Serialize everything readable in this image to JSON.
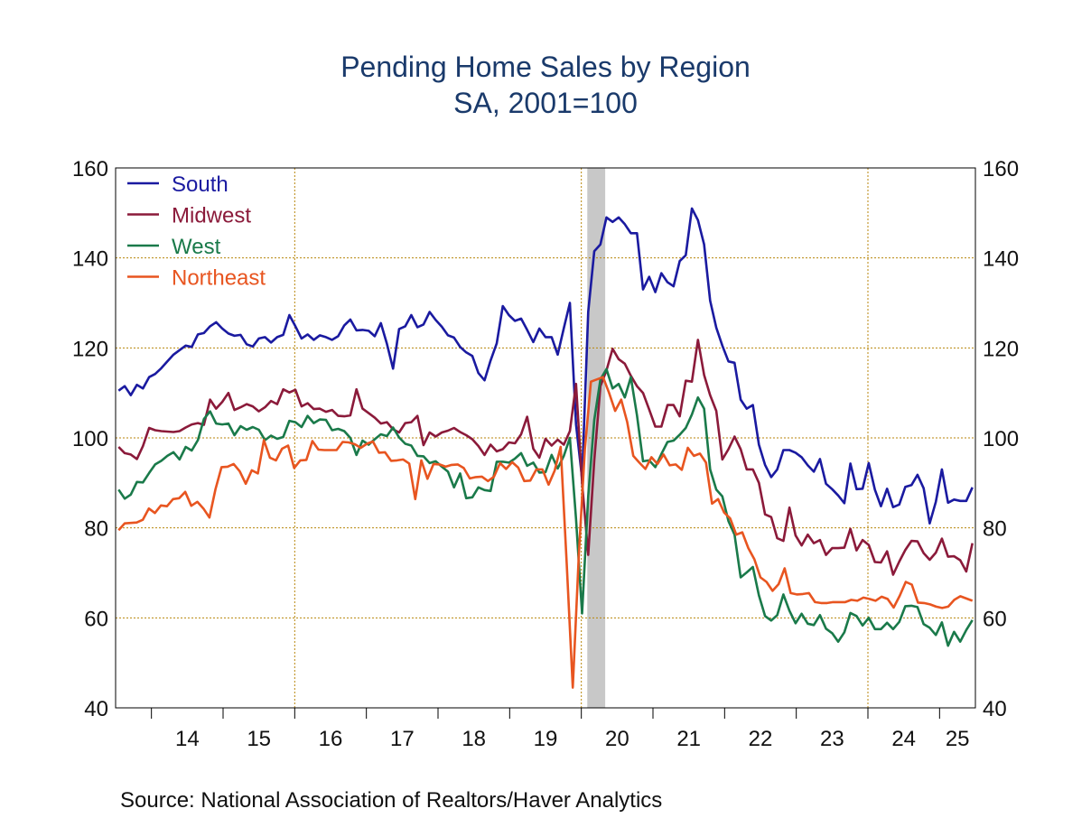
{
  "chart_data": {
    "type": "line",
    "title": "Pending Home Sales by Region",
    "subtitle": "SA, 2001=100",
    "source": "Source:  National Association of Realtors/Haver Analytics",
    "x_start": "2013-07",
    "x_end": "2025-06",
    "ylim": [
      40,
      160
    ],
    "y_ticks": [
      40,
      60,
      80,
      100,
      120,
      140,
      160
    ],
    "x_year_ticks": [
      "14",
      "15",
      "16",
      "17",
      "18",
      "19",
      "20",
      "21",
      "22",
      "23",
      "24",
      "25"
    ],
    "grid": true,
    "legend_position": "top-left",
    "recession_shading": [
      {
        "start": "2020-02",
        "end": "2020-04",
        "color": "#c8c8c8"
      }
    ],
    "series": [
      {
        "name": "South",
        "color": "#1a1aa0",
        "values": [
          110.5,
          111.5,
          109.5,
          111.8,
          111,
          113.5,
          114.2,
          115.5,
          117,
          118.5,
          119.5,
          120.5,
          120.2,
          123,
          123.3,
          124.8,
          125.7,
          124.3,
          123.2,
          122.7,
          122.9,
          120.8,
          120.3,
          122.1,
          122.4,
          121.2,
          122.4,
          122.9,
          127.3,
          124.8,
          122.1,
          123,
          121.8,
          122.8,
          122.4,
          121.8,
          122.6,
          125,
          126.3,
          123.9,
          124,
          123.8,
          122.6,
          125.5,
          120.9,
          115.4,
          124.2,
          124.8,
          127.3,
          124.6,
          125.2,
          128,
          126.2,
          124.7,
          122.8,
          122.3,
          120.2,
          119,
          118.2,
          114.4,
          112.8,
          117.2,
          121,
          129.3,
          127.3,
          126,
          126.5,
          124,
          121.3,
          124.3,
          122.4,
          122.4,
          118.5,
          124.4,
          130,
          103,
          91,
          128,
          141.5,
          143,
          149,
          148,
          149,
          147.5,
          145.5,
          145.5,
          133,
          135.8,
          132.4,
          136.6,
          134.6,
          133.7,
          139.3,
          140.6,
          151,
          148.4,
          143,
          130.5,
          124.5,
          120.5,
          117,
          116.7,
          108.5,
          106.5,
          107.3,
          98.5,
          94,
          91.3,
          93,
          97.3,
          97.3,
          96.7,
          95.7,
          93.9,
          92.5,
          95.3,
          89.8,
          88.6,
          87.2,
          85.5,
          94.3,
          88.6,
          88.7,
          94.4,
          88.5,
          84.8,
          88.7,
          84.6,
          85.2,
          89.1,
          89.5,
          91.8,
          88.8,
          81,
          85.8,
          93,
          85.6,
          86.3,
          86,
          86,
          89
        ]
      },
      {
        "name": "Midwest",
        "color": "#8b1a3a",
        "values": [
          98,
          96.6,
          96.3,
          95.3,
          98.2,
          102.2,
          101.7,
          101.5,
          101.4,
          101.3,
          101.5,
          102.3,
          103,
          103.3,
          102.9,
          108.5,
          106.5,
          108,
          110,
          106.2,
          106.8,
          107.5,
          107,
          105.9,
          106.8,
          108.2,
          107.5,
          110.8,
          110.1,
          110.7,
          107,
          107.7,
          106.4,
          106.5,
          105.8,
          106.2,
          104.9,
          104.8,
          105,
          110.8,
          106.5,
          105.5,
          104.5,
          103.2,
          103.5,
          101.9,
          101.2,
          103.3,
          103.5,
          104.9,
          98.4,
          101.2,
          100.3,
          101.2,
          101.6,
          102.2,
          101.3,
          100.6,
          99.7,
          98.2,
          96.2,
          98.5,
          97,
          97.5,
          99,
          98.8,
          100.8,
          104.7,
          97.6,
          95.6,
          99.8,
          98.3,
          99.6,
          98.5,
          101.5,
          112,
          90,
          74,
          95,
          111.5,
          115,
          119.8,
          117.5,
          116.5,
          113.8,
          111.5,
          110,
          106.3,
          102.5,
          102.5,
          107.3,
          107.3,
          104.8,
          112.7,
          112.5,
          121.8,
          114,
          109.5,
          106,
          95.2,
          97.5,
          100.3,
          97.5,
          93,
          93,
          90,
          83,
          82.4,
          77.7,
          77.1,
          84.5,
          78.3,
          76.1,
          78.5,
          76.6,
          77.3,
          74,
          75.5,
          75.5,
          75.6,
          79.8,
          75,
          77.3,
          76.2,
          72.4,
          72.3,
          74.8,
          69.6,
          72.5,
          75.1,
          77.1,
          77,
          74.4,
          72.9,
          74.5,
          77.6,
          73.6,
          73.7,
          72.8,
          70.3,
          76.6
        ]
      },
      {
        "name": "West",
        "color": "#1a7a4a",
        "values": [
          88.5,
          86.5,
          87.4,
          90.2,
          90.1,
          92.2,
          94.1,
          94.9,
          96,
          96.8,
          95.2,
          98,
          97.2,
          99.5,
          104.2,
          105.9,
          103.2,
          103,
          103.2,
          100.6,
          102.6,
          101.8,
          102.4,
          101.8,
          99.5,
          100.5,
          99.8,
          100.2,
          103.8,
          103.5,
          102.4,
          104.9,
          103.3,
          104.1,
          104,
          101.7,
          102,
          101.5,
          100,
          96.2,
          99.4,
          98.5,
          99.7,
          100.8,
          100.4,
          102.3,
          100.1,
          98.7,
          98.3,
          96,
          95.9,
          94.4,
          94.8,
          93.6,
          92.5,
          89,
          92.1,
          86.6,
          86.8,
          89,
          88.4,
          88.2,
          94.7,
          94.7,
          94.5,
          95.4,
          96.6,
          93.8,
          94.5,
          92.3,
          92.4,
          96.2,
          93.2,
          96,
          100,
          82,
          61,
          87,
          104,
          113,
          115.3,
          111,
          112,
          109,
          113.5,
          105,
          94.8,
          95,
          93.5,
          96.4,
          99.1,
          99.4,
          100.7,
          102.2,
          105.2,
          109,
          106.5,
          93,
          88.5,
          87,
          81.5,
          78.5,
          69,
          70.1,
          71.3,
          65,
          60.4,
          59.4,
          60.6,
          65.2,
          61.6,
          58.8,
          60.9,
          58.7,
          58.4,
          60.6,
          57.6,
          56.6,
          54.7,
          56.8,
          61.1,
          60.4,
          58.3,
          60,
          57.5,
          57.5,
          58.9,
          57.5,
          59.1,
          62.6,
          62.7,
          62.4,
          58.6,
          57.8,
          56.2,
          59,
          53.8,
          56.9,
          54.7,
          57.3,
          59.5
        ]
      },
      {
        "name": "Northeast",
        "color": "#e85520",
        "values": [
          79.5,
          81,
          81.1,
          81.2,
          81.8,
          84.3,
          83.3,
          85,
          84.8,
          86.4,
          86.6,
          88,
          84.9,
          85.8,
          84.3,
          82.3,
          88.6,
          93.5,
          93.6,
          94.2,
          92.6,
          89.8,
          92.8,
          92.1,
          99.5,
          95.6,
          95,
          97.6,
          98.3,
          93.3,
          95,
          95.1,
          99.3,
          97.4,
          97.3,
          97.3,
          97.3,
          99.1,
          99,
          98.6,
          97.8,
          98.7,
          99.2,
          96.7,
          96.8,
          94.9,
          95,
          95.2,
          94.3,
          86.4,
          95,
          90.9,
          94.2,
          94.1,
          93.6,
          94,
          94.1,
          93.3,
          91,
          91.3,
          91.4,
          90.4,
          91.4,
          94.4,
          93.1,
          94.6,
          93.4,
          90.4,
          90.5,
          93,
          93,
          89.6,
          92.7,
          98,
          72,
          44.5,
          74,
          97.5,
          112.5,
          113,
          113.5,
          110,
          106,
          108.5,
          103.5,
          96,
          94.5,
          93.1,
          95.7,
          94.2,
          96.3,
          93.9,
          94.1,
          92.9,
          97.8,
          96,
          96.5,
          94.5,
          85.4,
          86.4,
          83.4,
          82.1,
          78.5,
          79,
          75.5,
          73,
          69,
          68,
          66,
          67.5,
          71,
          65.5,
          65.2,
          65.3,
          65.5,
          63.5,
          63.3,
          63.3,
          63.5,
          63.5,
          63.5,
          64,
          63.8,
          64.5,
          64.2,
          63.8,
          64.7,
          64.2,
          62.3,
          64.9,
          68,
          67.4,
          63.4,
          63.3,
          63,
          62.5,
          62.2,
          62.5,
          64,
          64.8,
          64.3,
          63.8
        ]
      }
    ]
  }
}
